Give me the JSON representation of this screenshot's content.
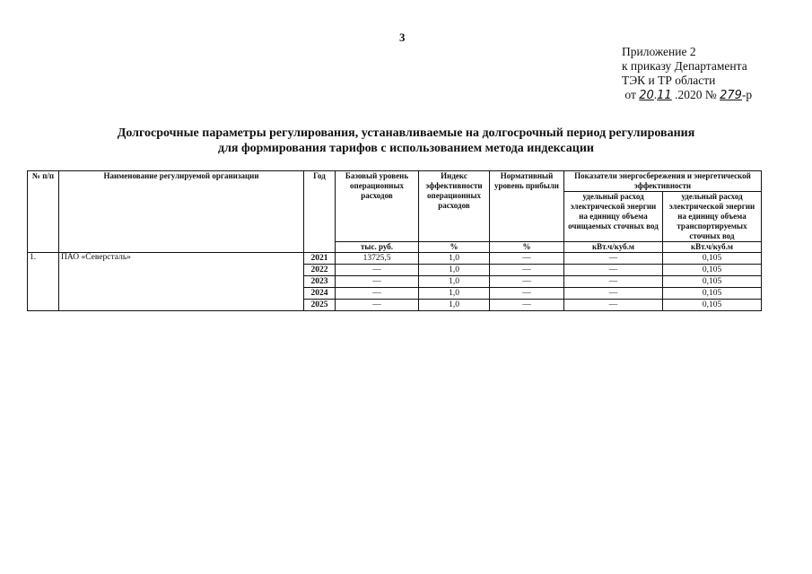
{
  "page_number": "3",
  "appendix": {
    "line1": "Приложение 2",
    "line2": "к приказу Департамента",
    "line3": "ТЭК и ТР области",
    "date_prefix": "от",
    "day": "20",
    "month": "11",
    "year": ".2020 №",
    "number": "279",
    "suffix": "-р"
  },
  "title": {
    "line1": "Долгосрочные параметры регулирования, устанавливаемые на долгосрочный период регулирования",
    "line2": "для формирования тарифов с использованием метода индексации"
  },
  "table": {
    "headers": {
      "num": "№ п/п",
      "name": "Наименование регулируемой организации",
      "year": "Год",
      "base": "Базовый уровень операционных расходов",
      "index": "Индекс эффективности операционных расходов",
      "norm": "Нормативный уровень прибыли",
      "energy_group": "Показатели энергосбережения и энергетической эффективности",
      "energy1": "удельный расход электрической энергии на единицу объема очищаемых сточных вод",
      "energy2": "удельный расход электрической энергии на единицу объема транспортируемых сточных вод"
    },
    "units": {
      "base": "тыс. руб.",
      "index": "%",
      "norm": "%",
      "energy1": "кВт.ч/куб.м",
      "energy2": "кВт.ч/куб.м"
    },
    "org": {
      "num": "1.",
      "name": "ПАО «Северсталь»"
    },
    "rows": [
      {
        "year": "2021",
        "base": "13725,5",
        "index": "1,0",
        "norm": "—",
        "energy1": "—",
        "energy2": "0,105"
      },
      {
        "year": "2022",
        "base": "—",
        "index": "1,0",
        "norm": "—",
        "energy1": "—",
        "energy2": "0,105"
      },
      {
        "year": "2023",
        "base": "—",
        "index": "1,0",
        "norm": "—",
        "energy1": "—",
        "energy2": "0,105"
      },
      {
        "year": "2024",
        "base": "—",
        "index": "1,0",
        "norm": "—",
        "energy1": "—",
        "energy2": "0,105"
      },
      {
        "year": "2025",
        "base": "—",
        "index": "1,0",
        "norm": "—",
        "energy1": "—",
        "energy2": "0,105"
      }
    ]
  }
}
